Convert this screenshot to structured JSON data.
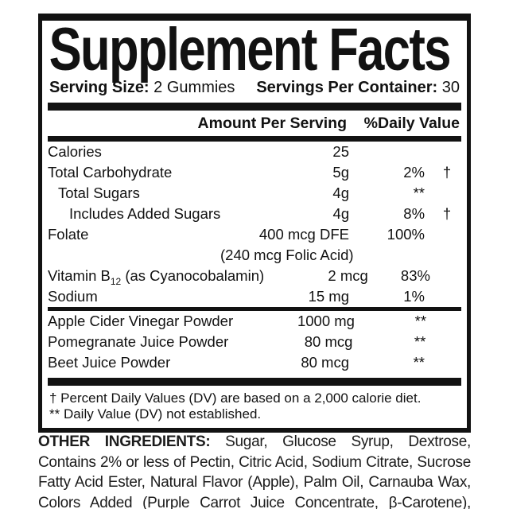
{
  "colors": {
    "ink": "#121212",
    "background": "#ffffff"
  },
  "title": "Supplement Facts",
  "serving": {
    "size_label": "Serving Size:",
    "size_value": "2 Gummies",
    "per_container_label": "Servings Per Container:",
    "per_container_value": "30"
  },
  "table": {
    "headers": {
      "amount": "Amount Per Serving",
      "dv": "%Daily Value"
    },
    "rows": [
      {
        "name": "Calories",
        "amount": "25",
        "dv": "",
        "dagger": ""
      },
      {
        "name": "Total Carbohydrate",
        "amount": "5g",
        "dv": "2%",
        "dagger": "†"
      },
      {
        "name": "Total Sugars",
        "amount": "4g",
        "dv": "**",
        "dagger": ""
      },
      {
        "name": "Includes Added Sugars",
        "amount": "4g",
        "dv": "8%",
        "dagger": "†"
      },
      {
        "name": "Folate",
        "amount": "400 mcg DFE",
        "dv": "100%",
        "dagger": ""
      },
      {
        "name": "",
        "amount": "(240 mcg Folic Acid)",
        "dv": "",
        "dagger": ""
      },
      {
        "name_pre": "Vitamin B",
        "name_sub": "12",
        "name_post": " (as Cyanocobalamin)",
        "amount": "2 mcg",
        "dv": "83%",
        "dagger": ""
      },
      {
        "name": "Sodium",
        "amount": "15 mg",
        "dv": "1%",
        "dagger": ""
      }
    ],
    "blend_rows": [
      {
        "name": "Apple Cider Vinegar Powder",
        "amount": "1000 mg",
        "dv": "**",
        "dagger": ""
      },
      {
        "name": "Pomegranate Juice Powder",
        "amount": "80 mcg",
        "dv": "**",
        "dagger": ""
      },
      {
        "name": "Beet Juice Powder",
        "amount": "80 mcg",
        "dv": "**",
        "dagger": ""
      }
    ]
  },
  "footnotes": {
    "dv_note": "† Percent Daily Values (DV) are based on a 2,000 calorie diet.",
    "not_established_note": "** Daily Value (DV) not established."
  },
  "other_ingredients": {
    "label": "OTHER INGREDIENTS:",
    "text": " Sugar, Glucose Syrup, Dextrose, Contains 2% or less of Pectin, Citric Acid, Sodium Citrate, Sucrose Fatty Acid Ester, Natural Flavor (Apple), Palm Oil, Carnauba Wax, Colors Added (Purple Carrot Juice Concentrate, β-Carotene), Stevioside."
  }
}
